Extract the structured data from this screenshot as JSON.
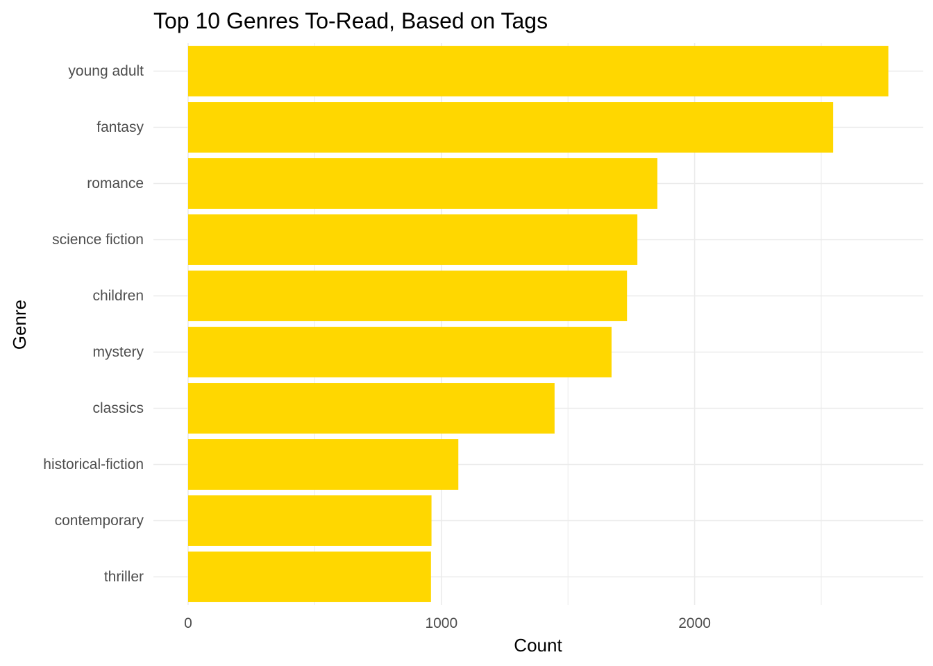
{
  "chart_data": {
    "type": "bar",
    "orientation": "horizontal",
    "title": "Top 10 Genres To-Read, Based on Tags",
    "xlabel": "Count",
    "ylabel": "Genre",
    "categories": [
      "young adult",
      "fantasy",
      "romance",
      "science fiction",
      "children",
      "mystery",
      "classics",
      "historical-fiction",
      "contemporary",
      "thriller"
    ],
    "values": [
      2765,
      2547,
      1853,
      1774,
      1733,
      1672,
      1447,
      1067,
      961,
      959
    ],
    "xlim": [
      0,
      2900
    ],
    "xticks": [
      0,
      1000,
      2000
    ],
    "xtick_labels": [
      "0",
      "1000",
      "2000"
    ],
    "grid": true,
    "bar_color": "#FFD700",
    "gridline_color": "#EBEBEB"
  }
}
